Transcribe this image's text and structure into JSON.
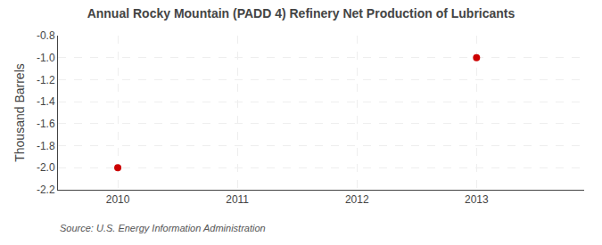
{
  "chart_data": {
    "type": "scatter",
    "title": "Annual Rocky Mountain (PADD 4) Refinery Net Production of Lubricants",
    "ylabel": "Thousand Barrels",
    "annotations": [
      "Source: U.S. Energy Information Administration"
    ],
    "x": [
      2010,
      2013
    ],
    "values": [
      -2.0,
      -1.0
    ],
    "color": "#cc0000",
    "marker": "circle",
    "xlim": [
      2009.5,
      2013.9
    ],
    "xticks": [
      2010,
      2011,
      2012,
      2013
    ],
    "ylim": [
      -2.2,
      -0.8
    ],
    "yticks": [
      -2.2,
      {
        "value": -2.0,
        "label": "-2.0"
      },
      -1.8,
      -1.6,
      -1.4,
      -1.2,
      {
        "value": -1.0,
        "label": "-1.0"
      },
      -0.8
    ],
    "grid": true
  }
}
